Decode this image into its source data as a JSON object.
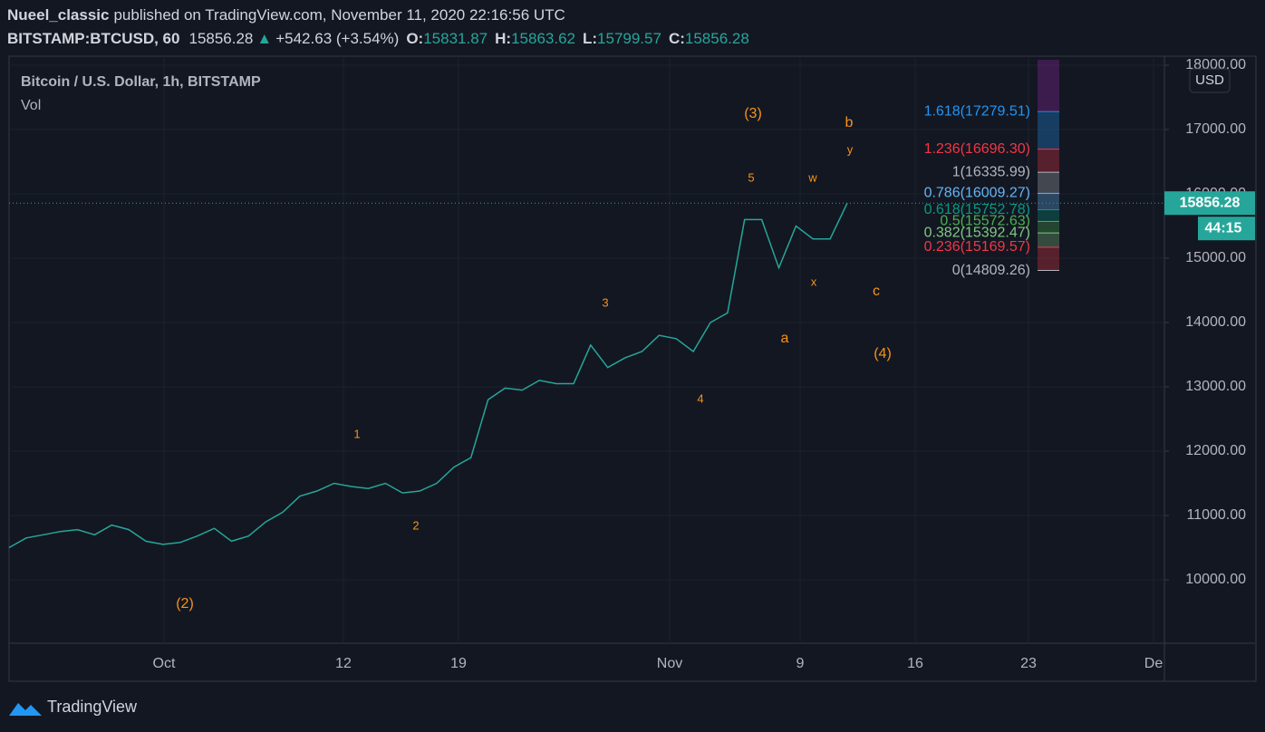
{
  "header": {
    "author": "Nueel_classic",
    "published": "published on TradingView.com, November 11, 2020 22:16:56 UTC",
    "symbol": "BITSTAMP:BTCUSD, 60",
    "last": "15856.28",
    "arrow": "▲",
    "change": "+542.63 (+3.54%)",
    "o_label": "O:",
    "o": "15831.87",
    "h_label": "H:",
    "h": "15863.62",
    "l_label": "L:",
    "l": "15799.57",
    "c_label": "C:",
    "c": "15856.28"
  },
  "chart_data": {
    "type": "line",
    "legend": "Bitcoin / U.S. Dollar, 1h, BITSTAMP",
    "volume_label": "Vol",
    "currency": "USD",
    "ylim": [
      9014,
      18141
    ],
    "yticks": [
      {
        "value": 10000,
        "label": "10000.00"
      },
      {
        "value": 11000,
        "label": "11000.00"
      },
      {
        "value": 12000,
        "label": "12000.00"
      },
      {
        "value": 13000,
        "label": "13000.00"
      },
      {
        "value": 14000,
        "label": "14000.00"
      },
      {
        "value": 15000,
        "label": "15000.00"
      },
      {
        "value": 16000,
        "label": "16000.00"
      },
      {
        "value": 17000,
        "label": "17000.00"
      },
      {
        "value": 18000,
        "label": "18000.00"
      }
    ],
    "xticks": [
      "Oct",
      "12",
      "19",
      "Nov",
      "9",
      "16",
      "23",
      "De"
    ],
    "series": [
      {
        "name": "BITSTAMP:BTCUSD",
        "color": "#26a69a",
        "values": [
          10500,
          10650,
          10700,
          10750,
          10780,
          10700,
          10850,
          10780,
          10600,
          10550,
          10580,
          10680,
          10800,
          10600,
          10680,
          10900,
          11050,
          11300,
          11380,
          11500,
          11450,
          11420,
          11500,
          11350,
          11380,
          11500,
          11750,
          11900,
          12800,
          12980,
          12950,
          13100,
          13050,
          13050,
          13650,
          13300,
          13450,
          13550,
          13800,
          13750,
          13550,
          14000,
          14150,
          15600,
          15600,
          14850,
          15500,
          15300,
          15300,
          15856.28
        ]
      }
    ],
    "last_price": {
      "value": 15856.28,
      "label": "15856.28",
      "countdown": "44:15"
    },
    "fib_levels": [
      {
        "value": 17279.51,
        "label": "1.618(17279.51)",
        "color": "#2196f3"
      },
      {
        "value": 16696.3,
        "label": "1.236(16696.30)",
        "color": "#f23645"
      },
      {
        "value": 16335.99,
        "label": "1(16335.99)",
        "color": "#b2b5be"
      },
      {
        "value": 16009.27,
        "label": "0.786(16009.27)",
        "color": "#64b5f6"
      },
      {
        "value": 15752.78,
        "label": "0.618(15752.78)",
        "color": "#089981"
      },
      {
        "value": 15572.63,
        "label": "0.5(15572.63)",
        "color": "#4caf50"
      },
      {
        "value": 15392.47,
        "label": "0.382(15392.47)",
        "color": "#81c784"
      },
      {
        "value": 15169.57,
        "label": "0.236(15169.57)",
        "color": "#f23645"
      },
      {
        "value": 14809.26,
        "label": "0(14809.26)",
        "color": "#b2b5be"
      }
    ],
    "annotations": [
      "(3)",
      "b",
      "y",
      "5",
      "w",
      "3",
      "x",
      "c",
      "a",
      "(4)",
      "4",
      "1",
      "2",
      "(2)"
    ]
  },
  "footer": {
    "brand": "TradingView"
  }
}
